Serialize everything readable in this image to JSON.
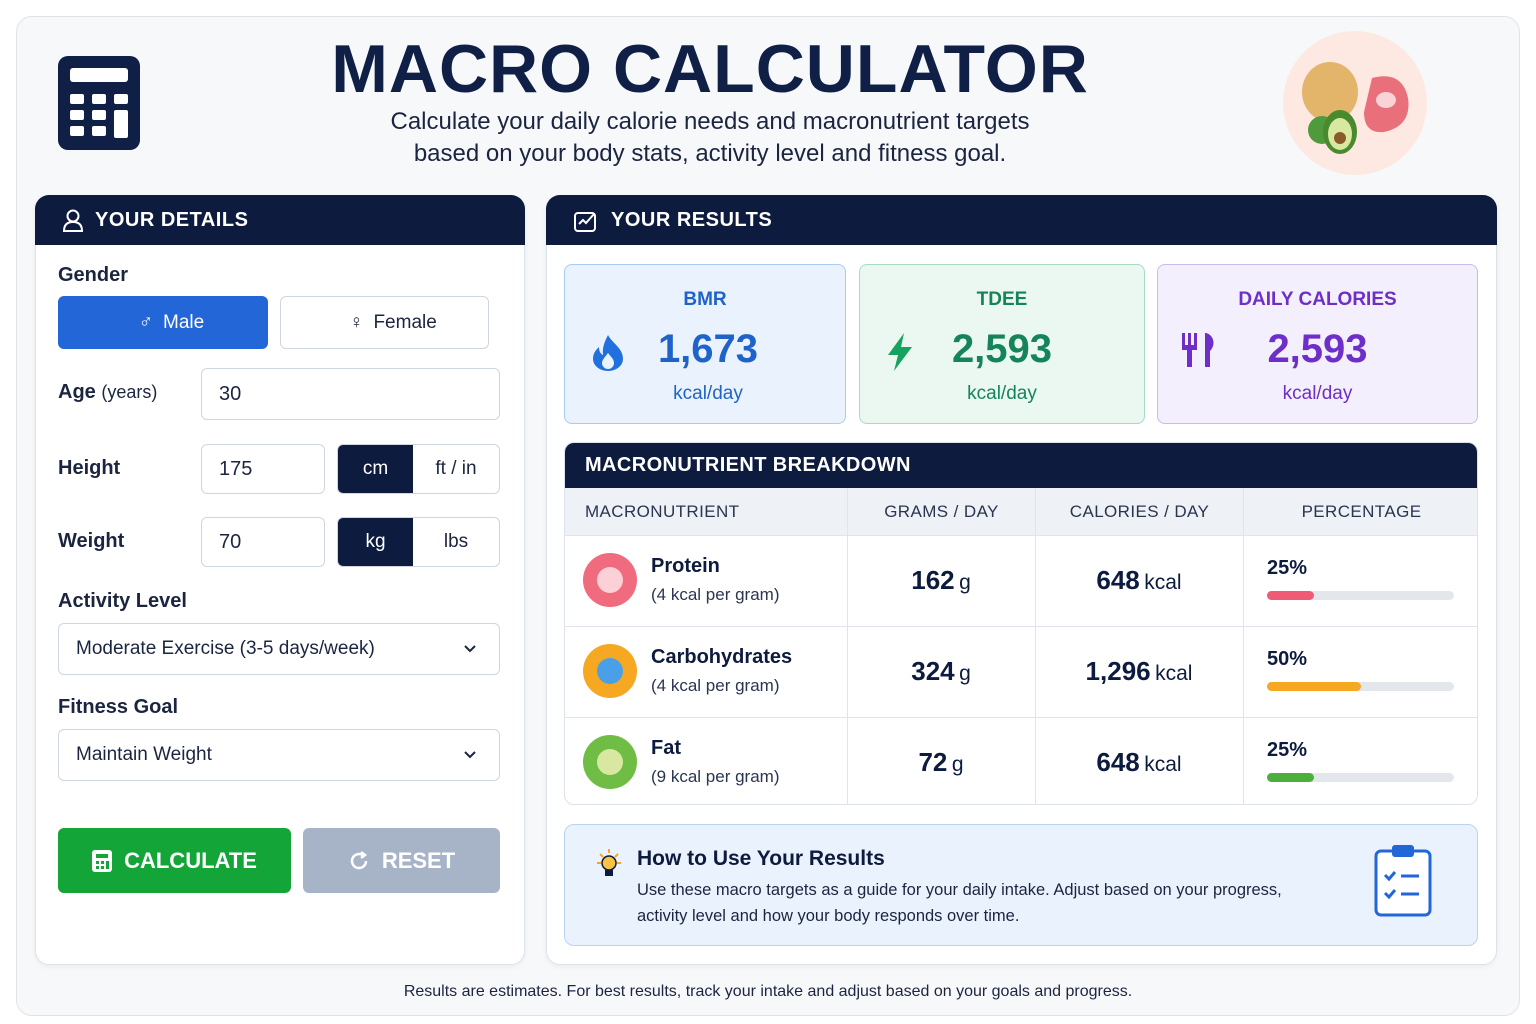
{
  "header": {
    "title": "MACRO CALCULATOR",
    "subtitle_lines": [
      "Calculate your daily calorie needs and macronutrient targets",
      "based on your body stats, activity level and fitness goal."
    ]
  },
  "details": {
    "heading": "YOUR DETAILS",
    "gender": {
      "label": "Gender",
      "options": [
        "Male",
        "Female"
      ],
      "selected": 0
    },
    "age": {
      "label": "Age",
      "unit": "(years)",
      "value": "30"
    },
    "height": {
      "label": "Height",
      "value": "175",
      "units": [
        "cm",
        "ft / in"
      ],
      "selected": 0
    },
    "weight": {
      "label": "Weight",
      "value": "70",
      "units": [
        "kg",
        "lbs"
      ],
      "selected": 0
    },
    "activity": {
      "label": "Activity Level",
      "value": "Moderate Exercise (3-5 days/week)"
    },
    "goal": {
      "label": "Fitness Goal",
      "value": "Maintain Weight"
    },
    "buttons": [
      "CALCULATE",
      "RESET"
    ]
  },
  "results": {
    "heading": "YOUR RESULTS",
    "cards": [
      {
        "label": "BMR",
        "value": "1,673",
        "unit": "kcal/day"
      },
      {
        "label": "TDEE",
        "value": "2,593",
        "unit": "kcal/day"
      },
      {
        "label": "DAILY CALORIES",
        "value": "2,593",
        "unit": "kcal/day"
      }
    ],
    "breakdown": {
      "title": "MACRONUTRIENT BREAKDOWN",
      "columns": [
        "MACRONUTRIENT",
        "GRAMS / DAY",
        "CALORIES / DAY",
        "PERCENTAGE"
      ],
      "rows": [
        {
          "name": "Protein",
          "note": "(4 kcal per gram)",
          "grams": "162",
          "grams_unit": "g",
          "calories": "648",
          "calories_unit": "kcal",
          "percentage": {
            "value": 25,
            "label": "25%"
          }
        },
        {
          "name": "Carbohydrates",
          "note": "(4 kcal per gram)",
          "grams": "324",
          "grams_unit": "g",
          "calories": "1,296",
          "calories_unit": "kcal",
          "percentage": {
            "value": 50,
            "label": "50%"
          }
        },
        {
          "name": "Fat",
          "note": "(9 kcal per gram)",
          "grams": "72",
          "grams_unit": "g",
          "calories": "648",
          "calories_unit": "kcal",
          "percentage": {
            "value": 25,
            "label": "25%"
          }
        }
      ]
    },
    "tip": {
      "title": "How to Use Your Results",
      "text_lines": [
        "Use these macro targets as a guide for your daily intake. Adjust based on your progress,",
        "activity level and how your body responds over time."
      ]
    }
  },
  "footer": "Results are estimates. For best results, track your intake and adjust based on your goals and progress."
}
